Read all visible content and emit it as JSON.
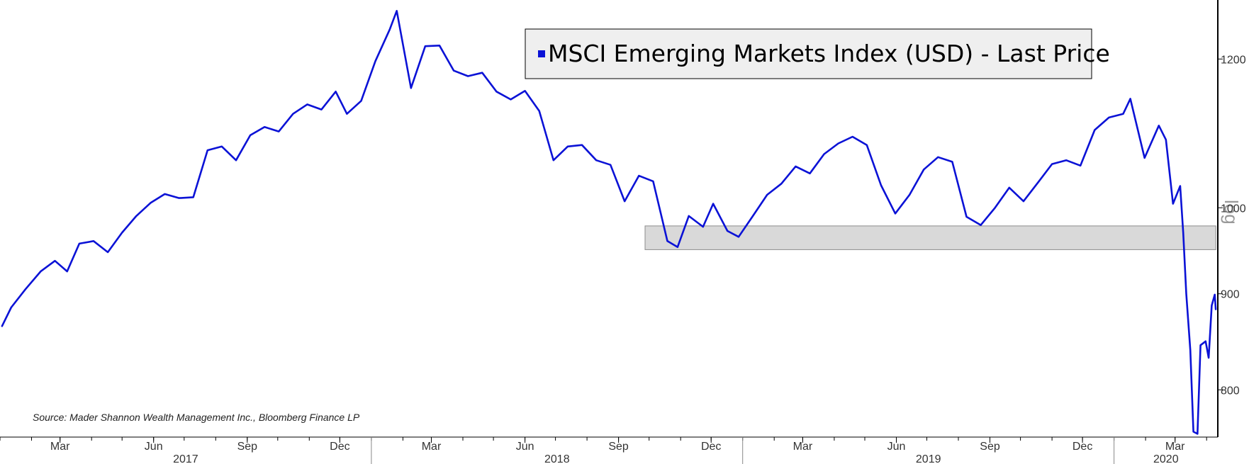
{
  "colors": {
    "series": "#0b12d6",
    "band_fill": "#d9d9d9",
    "band_stroke": "#8c8c8c",
    "legend_fill": "#efefef",
    "axis": "#000000",
    "background": "#ffffff"
  },
  "chart_data": {
    "type": "line",
    "title": "",
    "legend": {
      "entries": [
        "MSCI Emerging Markets Index (USD) - Last Price"
      ],
      "position": "top-right"
    },
    "source": "Source: Mader Shannon Wealth Management Inc., Bloomberg Finance LP",
    "y_scale_tag": "log",
    "y_axis": {
      "scale": "log",
      "side": "right",
      "range": [
        755,
        1290
      ],
      "ticks": [
        800,
        900,
        1000,
        1200
      ]
    },
    "x_axis": {
      "range": [
        "2017-01-01",
        "2020-04-12"
      ],
      "month_ticks": [
        {
          "date": "2017-03-01",
          "label": "Mar"
        },
        {
          "date": "2017-06-01",
          "label": "Jun"
        },
        {
          "date": "2017-09-01",
          "label": "Sep"
        },
        {
          "date": "2017-12-01",
          "label": "Dec"
        },
        {
          "date": "2018-03-01",
          "label": "Mar"
        },
        {
          "date": "2018-06-01",
          "label": "Jun"
        },
        {
          "date": "2018-09-01",
          "label": "Sep"
        },
        {
          "date": "2018-12-01",
          "label": "Dec"
        },
        {
          "date": "2019-03-01",
          "label": "Mar"
        },
        {
          "date": "2019-06-01",
          "label": "Jun"
        },
        {
          "date": "2019-09-01",
          "label": "Sep"
        },
        {
          "date": "2019-12-01",
          "label": "Dec"
        },
        {
          "date": "2020-03-01",
          "label": "Mar"
        }
      ],
      "years": [
        {
          "label": "2017",
          "start": "2017-01-01",
          "end": "2018-01-01"
        },
        {
          "label": "2018",
          "start": "2018-01-01",
          "end": "2019-01-01"
        },
        {
          "label": "2019",
          "start": "2019-01-01",
          "end": "2020-01-01"
        },
        {
          "label": "2020",
          "start": "2020-01-01",
          "end": "2020-04-12"
        }
      ]
    },
    "grid": false,
    "annotations": [
      {
        "type": "band",
        "x_start": "2018-09-27",
        "x_end": "2020-04-10",
        "y_low": 950,
        "y_high": 978
      }
    ],
    "series": [
      {
        "name": "MSCI Emerging Markets Index (USD) - Last Price",
        "points": [
          [
            "2017-01-03",
            865
          ],
          [
            "2017-01-12",
            885
          ],
          [
            "2017-01-26",
            905
          ],
          [
            "2017-02-10",
            925
          ],
          [
            "2017-02-24",
            937
          ],
          [
            "2017-03-08",
            925
          ],
          [
            "2017-03-20",
            957
          ],
          [
            "2017-04-03",
            960
          ],
          [
            "2017-04-17",
            947
          ],
          [
            "2017-05-01",
            970
          ],
          [
            "2017-05-15",
            990
          ],
          [
            "2017-05-29",
            1006
          ],
          [
            "2017-06-12",
            1017
          ],
          [
            "2017-06-26",
            1012
          ],
          [
            "2017-07-10",
            1013
          ],
          [
            "2017-07-24",
            1073
          ],
          [
            "2017-08-07",
            1078
          ],
          [
            "2017-08-21",
            1060
          ],
          [
            "2017-09-04",
            1093
          ],
          [
            "2017-09-18",
            1104
          ],
          [
            "2017-10-02",
            1098
          ],
          [
            "2017-10-16",
            1122
          ],
          [
            "2017-10-30",
            1135
          ],
          [
            "2017-11-13",
            1128
          ],
          [
            "2017-11-27",
            1153
          ],
          [
            "2017-12-08",
            1122
          ],
          [
            "2017-12-22",
            1140
          ],
          [
            "2018-01-05",
            1197
          ],
          [
            "2018-01-19",
            1244
          ],
          [
            "2018-01-26",
            1273
          ],
          [
            "2018-02-09",
            1158
          ],
          [
            "2018-02-23",
            1219
          ],
          [
            "2018-03-09",
            1220
          ],
          [
            "2018-03-23",
            1183
          ],
          [
            "2018-04-06",
            1175
          ],
          [
            "2018-04-20",
            1180
          ],
          [
            "2018-05-04",
            1153
          ],
          [
            "2018-05-18",
            1142
          ],
          [
            "2018-06-01",
            1154
          ],
          [
            "2018-06-15",
            1126
          ],
          [
            "2018-06-29",
            1060
          ],
          [
            "2018-07-13",
            1078
          ],
          [
            "2018-07-27",
            1080
          ],
          [
            "2018-08-10",
            1060
          ],
          [
            "2018-08-24",
            1054
          ],
          [
            "2018-09-07",
            1008
          ],
          [
            "2018-09-21",
            1040
          ],
          [
            "2018-10-05",
            1033
          ],
          [
            "2018-10-19",
            960
          ],
          [
            "2018-10-29",
            953
          ],
          [
            "2018-11-09",
            990
          ],
          [
            "2018-11-23",
            977
          ],
          [
            "2018-12-03",
            1005
          ],
          [
            "2018-12-17",
            972
          ],
          [
            "2018-12-28",
            965
          ],
          [
            "2019-01-11",
            990
          ],
          [
            "2019-01-25",
            1016
          ],
          [
            "2019-02-08",
            1030
          ],
          [
            "2019-02-22",
            1052
          ],
          [
            "2019-03-08",
            1043
          ],
          [
            "2019-03-22",
            1068
          ],
          [
            "2019-04-05",
            1082
          ],
          [
            "2019-04-19",
            1091
          ],
          [
            "2019-05-03",
            1080
          ],
          [
            "2019-05-17",
            1028
          ],
          [
            "2019-05-31",
            993
          ],
          [
            "2019-06-14",
            1016
          ],
          [
            "2019-06-28",
            1048
          ],
          [
            "2019-07-12",
            1064
          ],
          [
            "2019-07-26",
            1058
          ],
          [
            "2019-08-09",
            989
          ],
          [
            "2019-08-23",
            979
          ],
          [
            "2019-09-06",
            1000
          ],
          [
            "2019-09-20",
            1025
          ],
          [
            "2019-10-04",
            1008
          ],
          [
            "2019-10-18",
            1031
          ],
          [
            "2019-11-01",
            1055
          ],
          [
            "2019-11-15",
            1060
          ],
          [
            "2019-11-29",
            1053
          ],
          [
            "2019-12-13",
            1100
          ],
          [
            "2019-12-27",
            1117
          ],
          [
            "2020-01-10",
            1122
          ],
          [
            "2020-01-17",
            1143
          ],
          [
            "2020-01-31",
            1063
          ],
          [
            "2020-02-14",
            1106
          ],
          [
            "2020-02-21",
            1087
          ],
          [
            "2020-02-28",
            1005
          ],
          [
            "2020-03-06",
            1027
          ],
          [
            "2020-03-09",
            970
          ],
          [
            "2020-03-12",
            900
          ],
          [
            "2020-03-16",
            840
          ],
          [
            "2020-03-19",
            760
          ],
          [
            "2020-03-23",
            758
          ],
          [
            "2020-03-26",
            845
          ],
          [
            "2020-03-31",
            849
          ],
          [
            "2020-04-03",
            832
          ],
          [
            "2020-04-06",
            887
          ],
          [
            "2020-04-09",
            899
          ],
          [
            "2020-04-10",
            883
          ]
        ]
      }
    ]
  }
}
